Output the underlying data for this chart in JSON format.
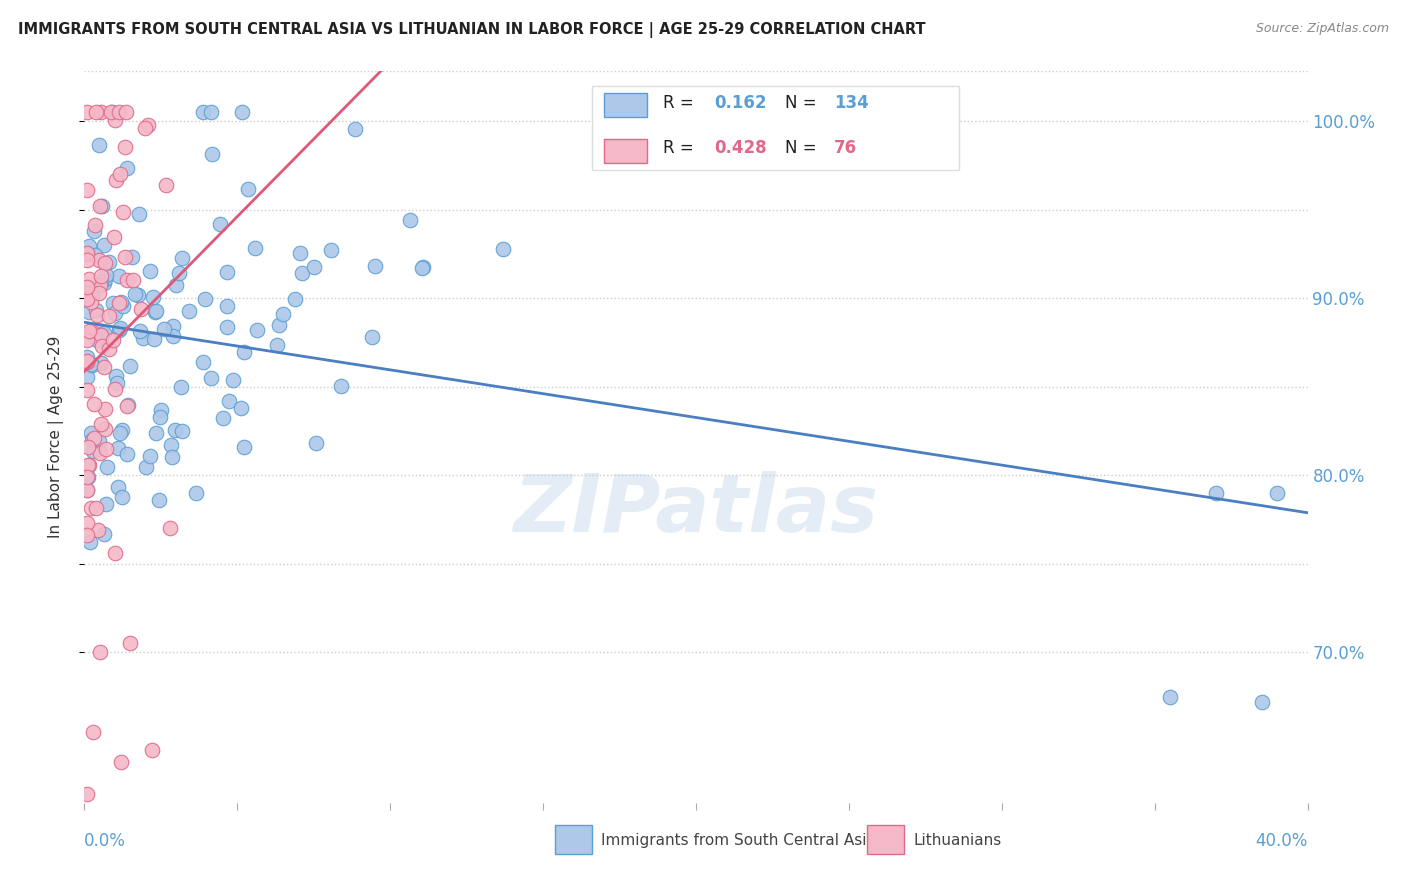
{
  "title": "IMMIGRANTS FROM SOUTH CENTRAL ASIA VS LITHUANIAN IN LABOR FORCE | AGE 25-29 CORRELATION CHART",
  "source": "Source: ZipAtlas.com",
  "ylabel": "In Labor Force | Age 25-29",
  "xmin": 0.0,
  "xmax": 0.4,
  "ymin": 0.615,
  "ymax": 1.028,
  "blue_R": 0.162,
  "blue_N": 134,
  "pink_R": 0.428,
  "pink_N": 76,
  "blue_color": "#adc8e8",
  "blue_edge_color": "#5a9fd4",
  "blue_line_color": "#4a7fc1",
  "pink_color": "#f5b8c8",
  "pink_edge_color": "#e06888",
  "pink_line_color": "#e05878",
  "legend_label_blue": "Immigrants from South Central Asia",
  "legend_label_pink": "Lithuanians",
  "watermark": "ZIPatlas",
  "ytick_vals": [
    0.7,
    0.75,
    0.8,
    0.85,
    0.9,
    0.95,
    1.0
  ],
  "ytick_labels": [
    "70.0%",
    "",
    "80.0%",
    "",
    "90.0%",
    "",
    "100.0%"
  ],
  "grid_vals": [
    0.7,
    0.75,
    0.8,
    0.85,
    0.9,
    0.95,
    1.0
  ]
}
